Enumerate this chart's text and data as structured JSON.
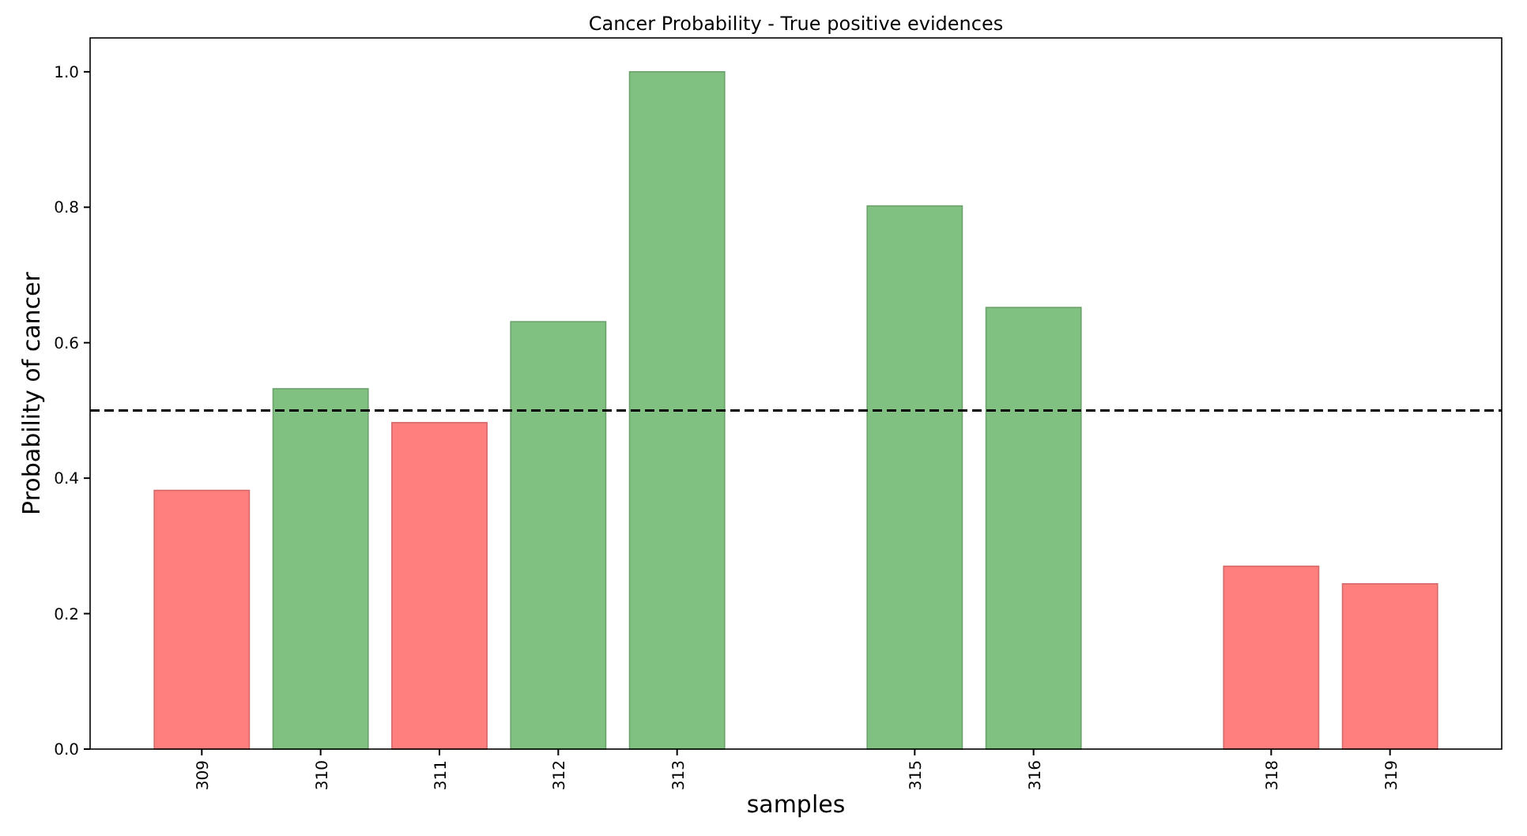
{
  "chart_data": {
    "type": "bar",
    "title": "Cancer Probability - True positive evidences",
    "xlabel": "samples",
    "ylabel": "Probability of cancer",
    "x": [
      309,
      310,
      311,
      312,
      313,
      315,
      316,
      318,
      319
    ],
    "values": [
      0.382,
      0.532,
      0.482,
      0.631,
      1.0,
      0.802,
      0.652,
      0.27,
      0.244
    ],
    "colors": [
      "#ff7f7f",
      "#80c080",
      "#ff7f7f",
      "#80c080",
      "#80c080",
      "#80c080",
      "#80c080",
      "#ff7f7f",
      "#ff7f7f"
    ],
    "xlim": [
      308.06,
      319.94
    ],
    "xticks": [
      309,
      310,
      311,
      312,
      313,
      315,
      316,
      318,
      319
    ],
    "ylim": [
      0,
      1.05
    ],
    "yticks": [
      {
        "value": 0,
        "label": "0.0"
      },
      {
        "value": 0.2,
        "label": "0.2"
      },
      {
        "value": 0.4,
        "label": "0.4"
      },
      {
        "value": 0.6,
        "label": "0.6"
      },
      {
        "value": 0.8,
        "label": "0.8"
      },
      {
        "value": 1,
        "label": "1.0"
      }
    ],
    "ref_lines": [
      {
        "axis": "y",
        "value": 0.5,
        "label": null,
        "color": "#000000",
        "line_style": "dashed"
      }
    ],
    "grid": false
  }
}
